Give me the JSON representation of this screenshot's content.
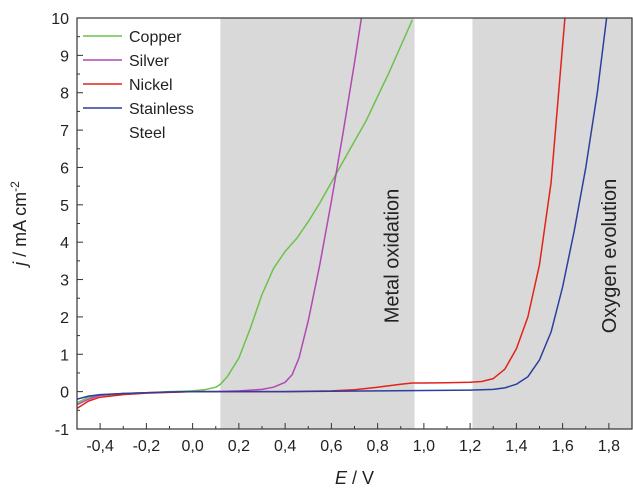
{
  "chart_data": {
    "type": "line",
    "xlabel_var": "E",
    "xlabel_unit": " / V",
    "ylabel_var": "j",
    "ylabel_unit": " / mA cm",
    "ylabel_sup": "-2",
    "xlim": [
      -0.5,
      1.9
    ],
    "ylim": [
      -1,
      10
    ],
    "xticks": [
      -0.4,
      -0.2,
      0.0,
      0.2,
      0.4,
      0.6,
      0.8,
      1.0,
      1.2,
      1.4,
      1.6,
      1.8
    ],
    "xtick_labels": [
      "-0,4",
      "-0,2",
      "0,0",
      "0,2",
      "0,4",
      "0,6",
      "0,8",
      "1,0",
      "1,2",
      "1,4",
      "1,6",
      "1,8"
    ],
    "yticks": [
      -1,
      0,
      1,
      2,
      3,
      4,
      5,
      6,
      7,
      8,
      9,
      10
    ],
    "ytick_labels": [
      "-1",
      "0",
      "1",
      "2",
      "3",
      "4",
      "5",
      "6",
      "7",
      "8",
      "9",
      "10"
    ],
    "grid": false,
    "legend_position": "top-left",
    "regions": [
      {
        "label": "Metal oxidation",
        "x0": 0.12,
        "x1": 0.96,
        "color": "#d9d9d9"
      },
      {
        "label": "Oxygen evolution",
        "x0": 1.21,
        "x1": 1.9,
        "color": "#d9d9d9"
      }
    ],
    "series": [
      {
        "name": "Copper",
        "color": "#6cc24a",
        "x": [
          -0.5,
          -0.45,
          -0.4,
          -0.3,
          -0.2,
          -0.1,
          0.0,
          0.05,
          0.1,
          0.12,
          0.15,
          0.2,
          0.25,
          0.3,
          0.35,
          0.4,
          0.45,
          0.5,
          0.55,
          0.6,
          0.65,
          0.7,
          0.75,
          0.8,
          0.85,
          0.9,
          0.95
        ],
        "y": [
          -0.3,
          -0.15,
          -0.1,
          -0.05,
          -0.03,
          0.0,
          0.02,
          0.05,
          0.12,
          0.2,
          0.4,
          0.9,
          1.7,
          2.6,
          3.3,
          3.75,
          4.1,
          4.55,
          5.05,
          5.6,
          6.15,
          6.7,
          7.25,
          7.9,
          8.55,
          9.25,
          9.95
        ]
      },
      {
        "name": "Silver",
        "color": "#b148b3",
        "x": [
          -0.5,
          -0.45,
          -0.4,
          -0.3,
          -0.2,
          -0.1,
          0.0,
          0.1,
          0.2,
          0.3,
          0.35,
          0.4,
          0.43,
          0.46,
          0.5,
          0.55,
          0.6,
          0.65,
          0.7,
          0.73
        ],
        "y": [
          -0.35,
          -0.2,
          -0.1,
          -0.05,
          -0.03,
          -0.01,
          0.0,
          0.0,
          0.02,
          0.06,
          0.12,
          0.25,
          0.45,
          0.9,
          1.9,
          3.4,
          5.1,
          6.9,
          8.8,
          10.0
        ]
      },
      {
        "name": "Nickel",
        "color": "#e2231a",
        "x": [
          -0.5,
          -0.45,
          -0.4,
          -0.3,
          -0.2,
          -0.1,
          0.0,
          0.2,
          0.4,
          0.6,
          0.7,
          0.8,
          0.9,
          0.95,
          1.0,
          1.1,
          1.2,
          1.25,
          1.3,
          1.35,
          1.4,
          1.45,
          1.5,
          1.55,
          1.58,
          1.61
        ],
        "y": [
          -0.45,
          -0.25,
          -0.15,
          -0.08,
          -0.04,
          -0.02,
          0.0,
          0.0,
          0.0,
          0.02,
          0.05,
          0.12,
          0.2,
          0.23,
          0.23,
          0.24,
          0.25,
          0.27,
          0.35,
          0.6,
          1.15,
          2.0,
          3.4,
          5.6,
          7.8,
          10.0
        ]
      },
      {
        "name": "Stainless Steel",
        "color": "#2b3f9e",
        "x": [
          -0.5,
          -0.45,
          -0.4,
          -0.3,
          -0.2,
          -0.1,
          0.0,
          0.2,
          0.4,
          0.6,
          0.8,
          1.0,
          1.2,
          1.3,
          1.35,
          1.4,
          1.45,
          1.5,
          1.55,
          1.6,
          1.65,
          1.7,
          1.75,
          1.79
        ],
        "y": [
          -0.2,
          -0.12,
          -0.08,
          -0.05,
          -0.03,
          -0.01,
          0.0,
          0.0,
          0.0,
          0.01,
          0.02,
          0.03,
          0.04,
          0.06,
          0.1,
          0.2,
          0.4,
          0.85,
          1.6,
          2.8,
          4.3,
          6.0,
          8.0,
          10.0
        ]
      }
    ]
  }
}
